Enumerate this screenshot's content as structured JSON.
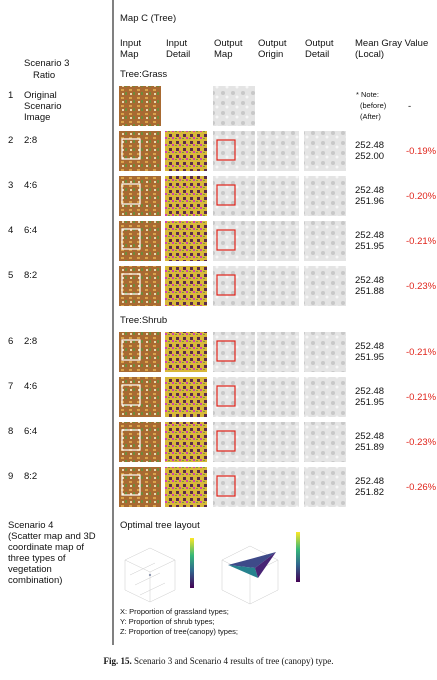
{
  "header": {
    "title": "Map C (Tree)"
  },
  "columns": [
    "Input Map",
    "Input Detail",
    "Output Map",
    "Output Origin",
    "Output Detail",
    "Mean Gray Value (Local)"
  ],
  "left_header": {
    "scenario": "Scenario 3",
    "ratio": "Ratio"
  },
  "groups": [
    {
      "label": "Tree:Grass",
      "rows": [
        {
          "index": "1",
          "ratio": "Original Scenario Image",
          "note": [
            "* Note:",
            "(before)",
            "(After)"
          ],
          "change": "-"
        },
        {
          "index": "2",
          "ratio": "2:8",
          "before": "252.48",
          "after": "252.00",
          "change": "-0.19%"
        },
        {
          "index": "3",
          "ratio": "4:6",
          "before": "252.48",
          "after": "251.96",
          "change": "-0.20%"
        },
        {
          "index": "4",
          "ratio": "6:4",
          "before": "252.48",
          "after": "251.95",
          "change": "-0.21%"
        },
        {
          "index": "5",
          "ratio": "8:2",
          "before": "252.48",
          "after": "251.88",
          "change": "-0.23%"
        }
      ]
    },
    {
      "label": "Tree:Shrub",
      "rows": [
        {
          "index": "6",
          "ratio": "2:8",
          "before": "252.48",
          "after": "251.95",
          "change": "-0.21%"
        },
        {
          "index": "7",
          "ratio": "4:6",
          "before": "252.48",
          "after": "251.95",
          "change": "-0.21%"
        },
        {
          "index": "8",
          "ratio": "6:4",
          "before": "252.48",
          "after": "251.89",
          "change": "-0.23%"
        },
        {
          "index": "9",
          "ratio": "8:2",
          "before": "252.48",
          "after": "251.82",
          "change": "-0.26%"
        }
      ]
    }
  ],
  "scenario4": {
    "label": "Scenario 4",
    "description": "(Scatter map and 3D coordinate map of three types of vegetation combination)",
    "title": "Optimal tree layout",
    "legend": [
      "X: Proportion of grassland types;",
      "Y: Proportion of shrub types;",
      "Z: Proportion of tree(canopy) types;"
    ]
  },
  "caption": {
    "label": "Fig. 15.",
    "text": "Scenario 3 and Scenario 4 results of tree (canopy) type."
  }
}
